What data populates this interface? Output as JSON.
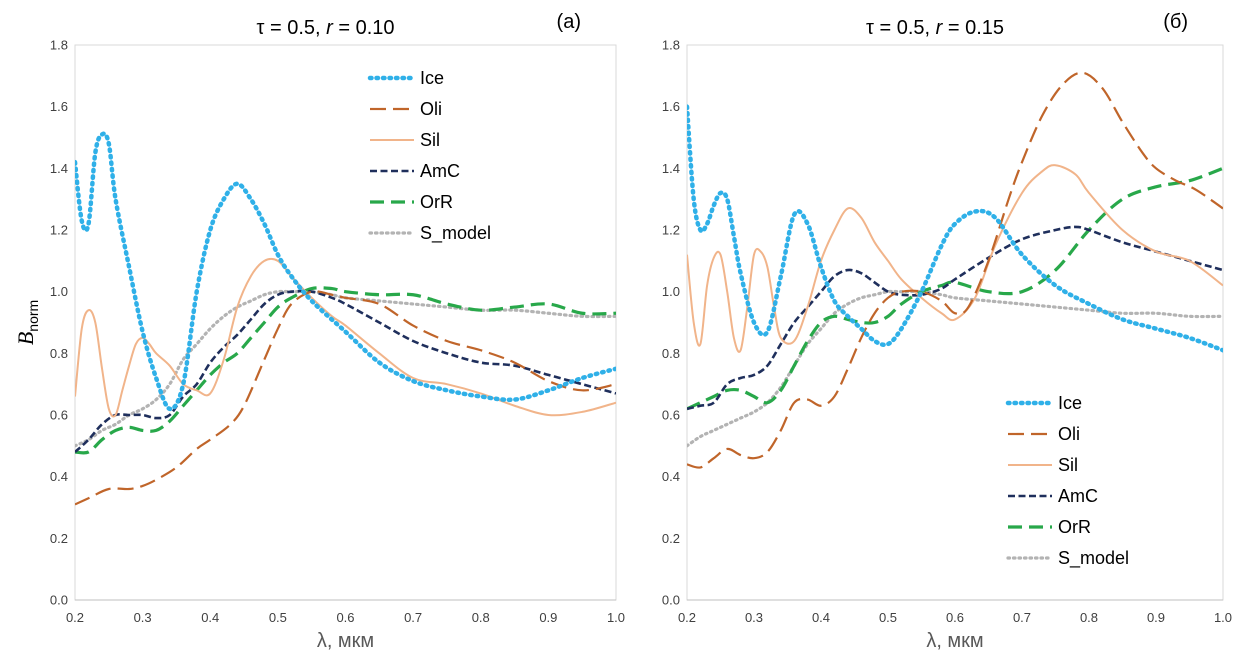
{
  "colors": {
    "Ice": "#2fb0e8",
    "Oli": "#c0652a",
    "Sil": "#f1b48a",
    "AmC": "#1f2f5c",
    "OrR": "#28a84a",
    "S_model": "#b3b3b3"
  },
  "chart_data": [
    {
      "type": "line",
      "panel_label": "(a)",
      "title": {
        "tau": "τ = 0.5, ",
        "r_sym": "r",
        "r_val": " = 0.10"
      },
      "xlabel": "λ, мкм",
      "ylabel": {
        "main": "B",
        "sub": "norm"
      },
      "xlim": [
        0.2,
        1.0
      ],
      "ylim": [
        0.0,
        1.8
      ],
      "xticks": [
        "0.2",
        "0.3",
        "0.4",
        "0.5",
        "0.6",
        "0.7",
        "0.8",
        "0.9",
        "1.0"
      ],
      "yticks": [
        "0.0",
        "0.2",
        "0.4",
        "0.6",
        "0.8",
        "1.0",
        "1.2",
        "1.4",
        "1.6",
        "1.8"
      ],
      "legend_position": "top-right",
      "series": [
        {
          "name": "Ice",
          "x": [
            0.2,
            0.21,
            0.22,
            0.23,
            0.24,
            0.25,
            0.26,
            0.28,
            0.3,
            0.32,
            0.34,
            0.36,
            0.38,
            0.4,
            0.42,
            0.44,
            0.46,
            0.48,
            0.5,
            0.52,
            0.55,
            0.6,
            0.65,
            0.7,
            0.75,
            0.8,
            0.85,
            0.9,
            0.95,
            1.0
          ],
          "y": [
            1.42,
            1.23,
            1.22,
            1.45,
            1.51,
            1.48,
            1.3,
            1.08,
            0.87,
            0.72,
            0.62,
            0.7,
            1.0,
            1.2,
            1.3,
            1.35,
            1.3,
            1.22,
            1.12,
            1.05,
            0.97,
            0.87,
            0.77,
            0.71,
            0.68,
            0.66,
            0.65,
            0.68,
            0.72,
            0.75
          ]
        },
        {
          "name": "Oli",
          "x": [
            0.2,
            0.22,
            0.25,
            0.28,
            0.3,
            0.32,
            0.35,
            0.38,
            0.4,
            0.43,
            0.45,
            0.48,
            0.5,
            0.52,
            0.55,
            0.58,
            0.6,
            0.65,
            0.7,
            0.75,
            0.8,
            0.85,
            0.9,
            0.95,
            1.0
          ],
          "y": [
            0.31,
            0.33,
            0.36,
            0.36,
            0.37,
            0.39,
            0.43,
            0.49,
            0.52,
            0.57,
            0.63,
            0.78,
            0.88,
            0.96,
            1.0,
            0.99,
            0.98,
            0.96,
            0.89,
            0.84,
            0.81,
            0.77,
            0.71,
            0.68,
            0.7
          ]
        },
        {
          "name": "Sil",
          "x": [
            0.2,
            0.21,
            0.22,
            0.23,
            0.24,
            0.25,
            0.26,
            0.27,
            0.28,
            0.29,
            0.3,
            0.31,
            0.32,
            0.34,
            0.36,
            0.38,
            0.4,
            0.42,
            0.44,
            0.46,
            0.48,
            0.5,
            0.52,
            0.55,
            0.58,
            0.6,
            0.65,
            0.7,
            0.75,
            0.8,
            0.85,
            0.9,
            0.95,
            1.0
          ],
          "y": [
            0.66,
            0.88,
            0.94,
            0.9,
            0.75,
            0.62,
            0.6,
            0.68,
            0.76,
            0.83,
            0.85,
            0.83,
            0.8,
            0.76,
            0.7,
            0.68,
            0.67,
            0.78,
            0.95,
            1.05,
            1.1,
            1.1,
            1.05,
            0.98,
            0.92,
            0.89,
            0.8,
            0.72,
            0.7,
            0.67,
            0.63,
            0.6,
            0.61,
            0.64
          ]
        },
        {
          "name": "AmC",
          "x": [
            0.2,
            0.22,
            0.24,
            0.26,
            0.28,
            0.3,
            0.32,
            0.34,
            0.36,
            0.38,
            0.4,
            0.42,
            0.44,
            0.46,
            0.48,
            0.5,
            0.52,
            0.55,
            0.58,
            0.6,
            0.65,
            0.7,
            0.75,
            0.8,
            0.85,
            0.9,
            0.95,
            1.0
          ],
          "y": [
            0.48,
            0.52,
            0.57,
            0.6,
            0.6,
            0.6,
            0.59,
            0.6,
            0.66,
            0.7,
            0.77,
            0.82,
            0.86,
            0.91,
            0.96,
            0.99,
            1.0,
            1.0,
            0.98,
            0.96,
            0.9,
            0.84,
            0.8,
            0.77,
            0.76,
            0.73,
            0.7,
            0.67
          ]
        },
        {
          "name": "OrR",
          "x": [
            0.2,
            0.22,
            0.24,
            0.26,
            0.28,
            0.3,
            0.32,
            0.34,
            0.36,
            0.38,
            0.4,
            0.42,
            0.44,
            0.46,
            0.48,
            0.5,
            0.52,
            0.55,
            0.58,
            0.6,
            0.65,
            0.7,
            0.75,
            0.8,
            0.85,
            0.9,
            0.95,
            1.0
          ],
          "y": [
            0.48,
            0.48,
            0.52,
            0.55,
            0.56,
            0.55,
            0.55,
            0.58,
            0.63,
            0.68,
            0.73,
            0.77,
            0.8,
            0.85,
            0.9,
            0.95,
            0.98,
            1.01,
            1.01,
            1.0,
            0.99,
            0.99,
            0.96,
            0.94,
            0.95,
            0.96,
            0.93,
            0.93
          ]
        },
        {
          "name": "S_model",
          "x": [
            0.2,
            0.22,
            0.24,
            0.26,
            0.28,
            0.3,
            0.32,
            0.34,
            0.36,
            0.38,
            0.4,
            0.42,
            0.44,
            0.46,
            0.48,
            0.5,
            0.52,
            0.55,
            0.58,
            0.6,
            0.65,
            0.7,
            0.75,
            0.8,
            0.85,
            0.9,
            0.95,
            1.0
          ],
          "y": [
            0.5,
            0.52,
            0.55,
            0.57,
            0.6,
            0.62,
            0.65,
            0.7,
            0.78,
            0.83,
            0.88,
            0.92,
            0.95,
            0.97,
            0.99,
            1.0,
            1.0,
            1.0,
            0.99,
            0.98,
            0.97,
            0.96,
            0.95,
            0.94,
            0.94,
            0.93,
            0.92,
            0.92
          ]
        }
      ]
    },
    {
      "type": "line",
      "panel_label": "(б)",
      "title": {
        "tau": "τ = 0.5, ",
        "r_sym": "r",
        "r_val": " = 0.15"
      },
      "xlabel": "λ, мкм",
      "ylabel": {
        "main": "",
        "sub": ""
      },
      "xlim": [
        0.2,
        1.0
      ],
      "ylim": [
        0.0,
        1.8
      ],
      "xticks": [
        "0.2",
        "0.3",
        "0.4",
        "0.5",
        "0.6",
        "0.7",
        "0.8",
        "0.9",
        "1.0"
      ],
      "yticks": [
        "0.0",
        "0.2",
        "0.4",
        "0.6",
        "0.8",
        "1.0",
        "1.2",
        "1.4",
        "1.6",
        "1.8"
      ],
      "legend_position": "bottom-right",
      "series": [
        {
          "name": "Ice",
          "x": [
            0.2,
            0.21,
            0.22,
            0.23,
            0.24,
            0.25,
            0.26,
            0.27,
            0.28,
            0.3,
            0.32,
            0.34,
            0.36,
            0.38,
            0.4,
            0.42,
            0.44,
            0.46,
            0.48,
            0.5,
            0.52,
            0.55,
            0.58,
            0.6,
            0.63,
            0.66,
            0.7,
            0.75,
            0.8,
            0.85,
            0.9,
            0.95,
            1.0
          ],
          "y": [
            1.6,
            1.3,
            1.2,
            1.22,
            1.28,
            1.32,
            1.3,
            1.18,
            1.06,
            0.9,
            0.87,
            1.05,
            1.25,
            1.22,
            1.08,
            0.97,
            0.92,
            0.88,
            0.84,
            0.83,
            0.88,
            1.0,
            1.15,
            1.22,
            1.26,
            1.24,
            1.12,
            1.02,
            0.96,
            0.91,
            0.88,
            0.85,
            0.81
          ]
        },
        {
          "name": "Oli",
          "x": [
            0.2,
            0.22,
            0.24,
            0.26,
            0.28,
            0.3,
            0.32,
            0.34,
            0.36,
            0.38,
            0.4,
            0.42,
            0.44,
            0.46,
            0.48,
            0.5,
            0.52,
            0.55,
            0.58,
            0.6,
            0.62,
            0.65,
            0.68,
            0.7,
            0.73,
            0.76,
            0.79,
            0.82,
            0.85,
            0.88,
            0.9,
            0.93,
            0.96,
            1.0
          ],
          "y": [
            0.44,
            0.43,
            0.46,
            0.49,
            0.47,
            0.46,
            0.48,
            0.55,
            0.64,
            0.65,
            0.63,
            0.66,
            0.75,
            0.85,
            0.93,
            0.98,
            1.0,
            1.0,
            0.97,
            0.93,
            0.95,
            1.1,
            1.3,
            1.42,
            1.57,
            1.67,
            1.71,
            1.66,
            1.55,
            1.45,
            1.4,
            1.36,
            1.33,
            1.27
          ]
        },
        {
          "name": "Sil",
          "x": [
            0.2,
            0.21,
            0.22,
            0.23,
            0.24,
            0.25,
            0.26,
            0.27,
            0.28,
            0.29,
            0.3,
            0.31,
            0.32,
            0.33,
            0.34,
            0.36,
            0.38,
            0.4,
            0.42,
            0.44,
            0.46,
            0.48,
            0.5,
            0.52,
            0.55,
            0.58,
            0.6,
            0.63,
            0.66,
            0.7,
            0.73,
            0.75,
            0.78,
            0.8,
            0.85,
            0.9,
            0.95,
            1.0
          ],
          "y": [
            1.12,
            0.9,
            0.83,
            1.02,
            1.11,
            1.12,
            1.0,
            0.85,
            0.81,
            0.95,
            1.12,
            1.13,
            1.08,
            0.95,
            0.85,
            0.84,
            0.95,
            1.1,
            1.2,
            1.27,
            1.24,
            1.16,
            1.1,
            1.04,
            0.98,
            0.93,
            0.91,
            0.98,
            1.15,
            1.32,
            1.39,
            1.41,
            1.38,
            1.32,
            1.2,
            1.13,
            1.1,
            1.02
          ]
        },
        {
          "name": "AmC",
          "x": [
            0.2,
            0.22,
            0.24,
            0.26,
            0.28,
            0.3,
            0.32,
            0.34,
            0.36,
            0.38,
            0.4,
            0.42,
            0.44,
            0.46,
            0.48,
            0.5,
            0.52,
            0.55,
            0.58,
            0.6,
            0.65,
            0.7,
            0.75,
            0.78,
            0.8,
            0.85,
            0.9,
            0.95,
            1.0
          ],
          "y": [
            0.62,
            0.63,
            0.64,
            0.7,
            0.72,
            0.73,
            0.76,
            0.83,
            0.9,
            0.95,
            1.0,
            1.05,
            1.07,
            1.06,
            1.03,
            1.0,
            0.99,
            0.99,
            1.01,
            1.04,
            1.11,
            1.17,
            1.2,
            1.21,
            1.2,
            1.16,
            1.13,
            1.1,
            1.07
          ]
        },
        {
          "name": "OrR",
          "x": [
            0.2,
            0.22,
            0.24,
            0.26,
            0.28,
            0.3,
            0.32,
            0.34,
            0.36,
            0.38,
            0.4,
            0.42,
            0.44,
            0.46,
            0.48,
            0.5,
            0.52,
            0.55,
            0.58,
            0.6,
            0.65,
            0.7,
            0.75,
            0.8,
            0.85,
            0.9,
            0.95,
            1.0
          ],
          "y": [
            0.62,
            0.64,
            0.66,
            0.68,
            0.68,
            0.66,
            0.64,
            0.68,
            0.76,
            0.84,
            0.9,
            0.92,
            0.91,
            0.9,
            0.9,
            0.92,
            0.96,
            1.0,
            1.02,
            1.03,
            1.0,
            1.0,
            1.07,
            1.2,
            1.3,
            1.34,
            1.36,
            1.4
          ]
        },
        {
          "name": "S_model",
          "x": [
            0.2,
            0.22,
            0.24,
            0.26,
            0.28,
            0.3,
            0.32,
            0.34,
            0.36,
            0.38,
            0.4,
            0.42,
            0.44,
            0.46,
            0.48,
            0.5,
            0.52,
            0.55,
            0.58,
            0.6,
            0.65,
            0.7,
            0.75,
            0.8,
            0.85,
            0.9,
            0.95,
            1.0
          ],
          "y": [
            0.5,
            0.53,
            0.55,
            0.57,
            0.59,
            0.61,
            0.64,
            0.69,
            0.76,
            0.83,
            0.88,
            0.93,
            0.96,
            0.98,
            0.99,
            1.0,
            1.0,
            1.0,
            0.99,
            0.98,
            0.97,
            0.96,
            0.95,
            0.94,
            0.93,
            0.93,
            0.92,
            0.92
          ]
        }
      ]
    }
  ]
}
